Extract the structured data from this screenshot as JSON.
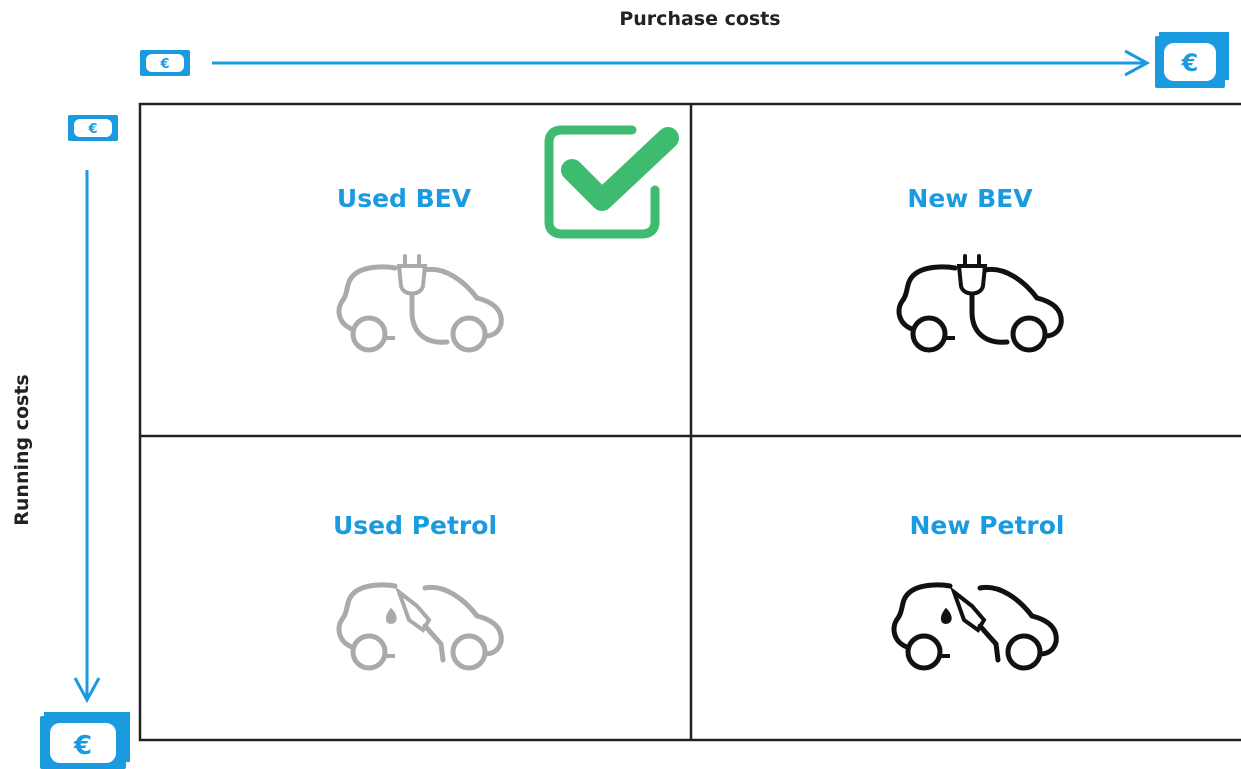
{
  "axes": {
    "x_label": "Purchase costs",
    "y_label": "Running costs",
    "currency_symbol": "€"
  },
  "cells": [
    {
      "label": "Used BEV"
    },
    {
      "label": "New BEV"
    },
    {
      "label": "Used Petrol"
    },
    {
      "label": "New Petrol"
    }
  ]
}
